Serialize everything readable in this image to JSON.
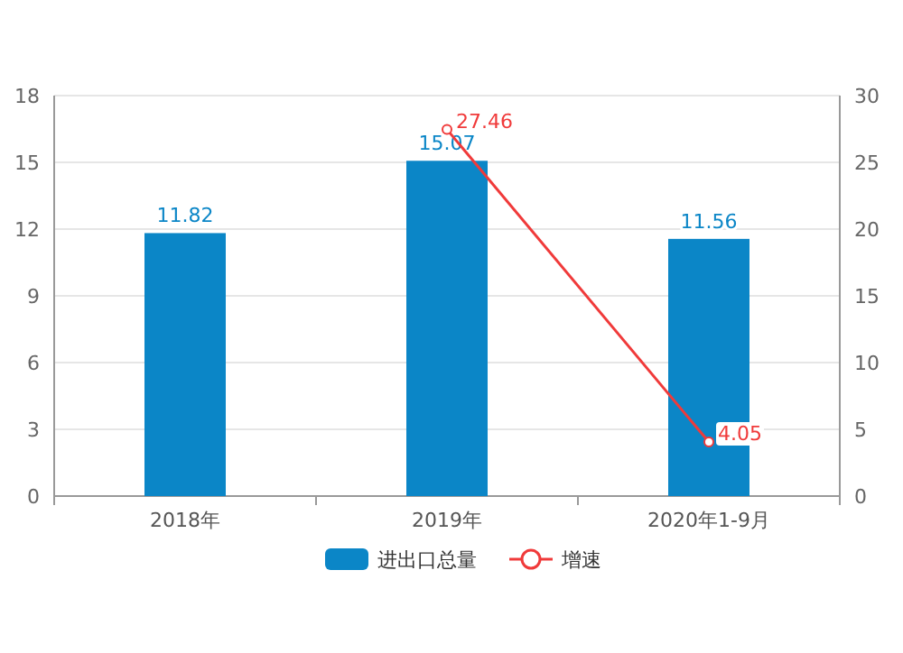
{
  "chart_data": {
    "type": "bar",
    "categories": [
      "2018年",
      "2019年",
      "2020年1-9月"
    ],
    "series": [
      {
        "name": "进出口总量",
        "color": "#0b86c7",
        "values": [
          11.82,
          15.07,
          11.56
        ]
      },
      {
        "name": "增速",
        "type": "line",
        "axis": "y2",
        "color": "#f03a3a",
        "values": [
          null,
          27.46,
          4.05
        ],
        "marker": "circle"
      }
    ],
    "data_labels": true,
    "ylim": [
      0,
      18
    ],
    "yticks": [
      0,
      3,
      6,
      9,
      12,
      15,
      18
    ],
    "y2lim": [
      0,
      30
    ],
    "y2ticks": [
      0,
      5,
      10,
      15,
      20,
      25,
      30
    ],
    "grid": "y",
    "legend": "bottom"
  }
}
